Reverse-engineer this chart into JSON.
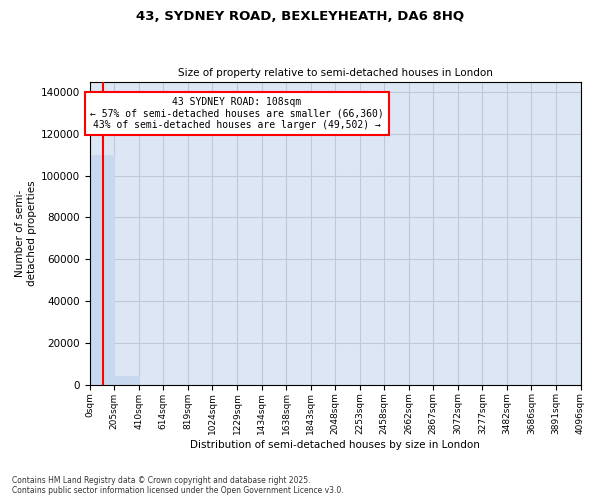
{
  "title": "43, SYDNEY ROAD, BEXLEYHEATH, DA6 8HQ",
  "subtitle": "Size of property relative to semi-detached houses in London",
  "xlabel": "Distribution of semi-detached houses by size in London",
  "ylabel": "Number of semi-\ndetached properties",
  "property_size": 108,
  "property_label": "43 SYDNEY ROAD: 108sqm",
  "pct_smaller": 57,
  "n_smaller": 66360,
  "pct_larger": 43,
  "n_larger": 49502,
  "bar_color": "#c8d9ef",
  "line_color": "red",
  "grid_color": "#c0c8d8",
  "background_color": "#dce6f4",
  "bins": [
    0,
    205,
    410,
    614,
    819,
    1024,
    1229,
    1434,
    1638,
    1843,
    2048,
    2253,
    2458,
    2662,
    2867,
    3072,
    3277,
    3482,
    3686,
    3891,
    4096
  ],
  "counts": [
    110000,
    4000,
    0,
    0,
    0,
    0,
    0,
    0,
    0,
    0,
    0,
    0,
    0,
    0,
    0,
    0,
    0,
    0,
    0,
    0
  ],
  "ylim": [
    0,
    145000
  ],
  "yticks": [
    0,
    20000,
    40000,
    60000,
    80000,
    100000,
    120000,
    140000
  ],
  "footnote": "Contains HM Land Registry data © Crown copyright and database right 2025.\nContains public sector information licensed under the Open Government Licence v3.0."
}
